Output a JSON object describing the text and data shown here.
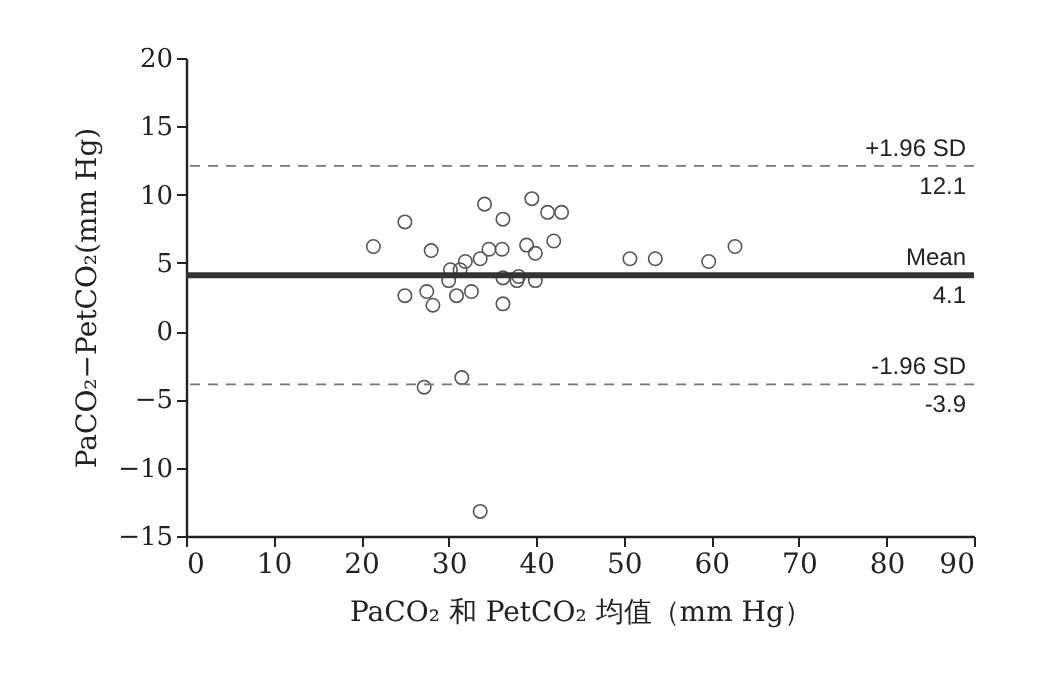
{
  "chart_data": {
    "type": "scatter",
    "xlabel": "PaCO₂ 和 PetCO₂ 均值（mm Hg）",
    "ylabel": "PaCO₂−PetCO₂(mm Hg)",
    "x": [
      21.4,
      25.0,
      28.0,
      34.1,
      36.2,
      39.5,
      41.3,
      42.9,
      42.0,
      38.9,
      39.9,
      34.6,
      36.1,
      33.6,
      31.9,
      30.2,
      31.3,
      30.0,
      36.2,
      38.0,
      37.8,
      39.9,
      25.0,
      27.5,
      28.2,
      30.9,
      32.6,
      36.2,
      31.5,
      27.2,
      33.6,
      50.7,
      53.6,
      59.7,
      62.7
    ],
    "values": [
      6.2,
      8.0,
      5.9,
      9.3,
      8.2,
      9.7,
      8.7,
      8.7,
      6.6,
      6.3,
      5.7,
      6.0,
      6.0,
      5.3,
      5.1,
      4.5,
      4.5,
      3.7,
      3.9,
      4.0,
      3.7,
      3.7,
      2.6,
      2.9,
      1.9,
      2.6,
      2.9,
      2.0,
      -3.4,
      -4.1,
      -13.2,
      5.3,
      5.3,
      5.1,
      6.2
    ],
    "color": "#555555",
    "marker": "circle",
    "grid": false,
    "xlim": [
      0,
      90
    ],
    "xticks": [
      0,
      10,
      20,
      30,
      40,
      50,
      60,
      70,
      80,
      90
    ],
    "ylim": [
      -15,
      20
    ],
    "yticks": [
      -15,
      -10,
      -5,
      0,
      5,
      10,
      15,
      20
    ],
    "ref_lines": [
      {
        "axis": "y",
        "value": 12.1,
        "label": "+1.96 SD",
        "color": "#777777",
        "line_style": "dashed"
      },
      {
        "axis": "y",
        "value": 4.1,
        "label": "Mean",
        "color": "#333333",
        "line_style": "solid"
      },
      {
        "axis": "y",
        "value": -3.9,
        "label": "-1.96 SD",
        "color": "#777777",
        "line_style": "dashed"
      }
    ],
    "annotations": [
      {
        "text": "12.1",
        "y": 12.1
      },
      {
        "text": "4.1",
        "y": 4.1
      },
      {
        "text": "-3.9",
        "y": -3.9
      }
    ]
  }
}
